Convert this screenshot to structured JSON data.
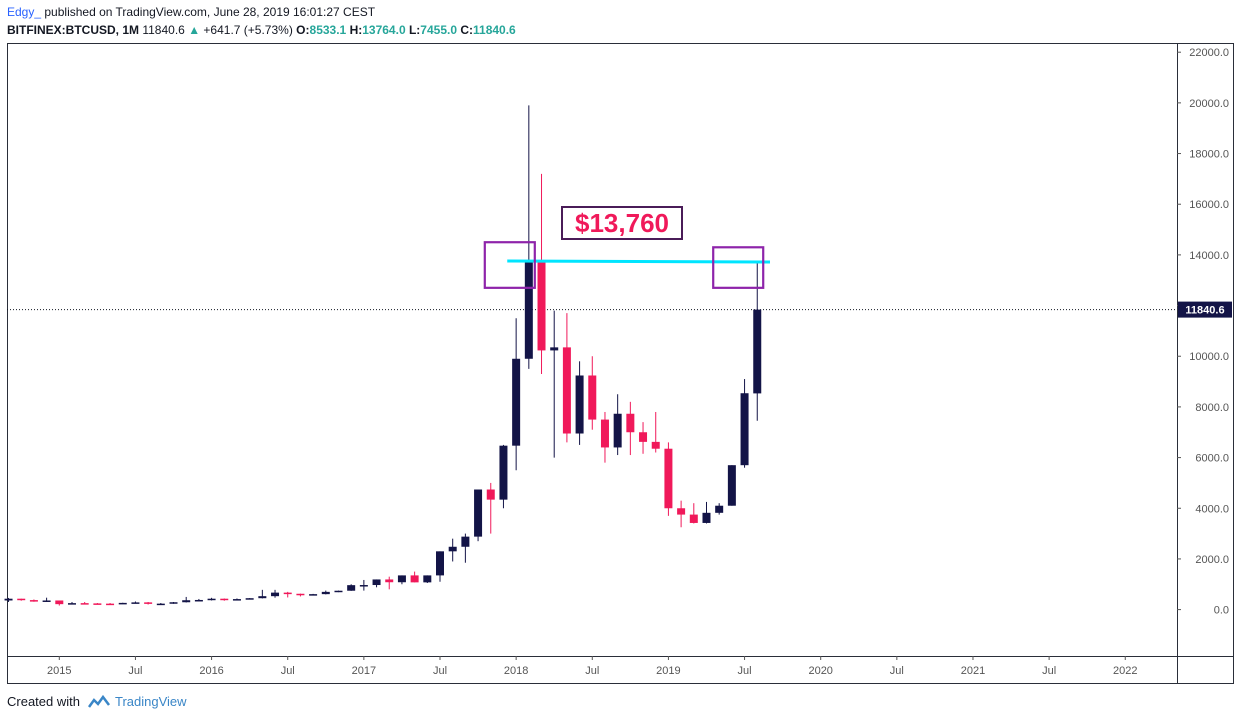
{
  "header": {
    "author": "Edgy_",
    "published": "published on TradingView.com, June 28, 2019 16:01:27 CEST",
    "symbol": "BITFINEX:BTCUSD, 1M",
    "last": "11840.6",
    "change_arrow": "▲",
    "change": "+641.7 (+5.73%)",
    "open_label": "O:",
    "open": "8533.1",
    "high_label": "H:",
    "high": "13764.0",
    "low_label": "L:",
    "low": "7455.0",
    "close_label": "C:",
    "close": "11840.6"
  },
  "callout": {
    "text": "$13,760"
  },
  "footer": {
    "created_with": "Created with",
    "brand": "TradingView"
  },
  "colors": {
    "up": "#131447",
    "down": "#f0195a",
    "resistance": "#00e5ff",
    "highlight_box": "#8e24aa",
    "price_tag": "#131447"
  },
  "chart_data": {
    "type": "candlestick",
    "title": "",
    "timeframe": "1M",
    "ylim": [
      -1700,
      22400
    ],
    "yticks": [
      22000,
      20000,
      18000,
      16000,
      14000,
      12000,
      10000,
      8000,
      6000,
      4000,
      2000,
      0
    ],
    "ytick_labels": [
      "22000.0",
      "20000.0",
      "18000.0",
      "16000.0",
      "14000.0",
      "12000.0",
      "10000.0",
      "8000.0",
      "6000.0",
      "4000.0",
      "2000.0",
      "0.0"
    ],
    "xtick_labels": [
      "2015",
      "Jul",
      "2016",
      "Jul",
      "2017",
      "Jul",
      "2018",
      "Jul",
      "2019",
      "Jul",
      "2020",
      "Jul",
      "2021",
      "Jul",
      "2022"
    ],
    "xtick_month_index": [
      0,
      6,
      12,
      18,
      24,
      30,
      36,
      42,
      48,
      54,
      60,
      66,
      72,
      78,
      84
    ],
    "first_candle_month_index": -4,
    "last_price": 11840.6,
    "resistance_level": 13760,
    "highlight_boxes": [
      {
        "month_index": 35.5,
        "low": 12700,
        "high": 14500
      },
      {
        "month_index": 53.5,
        "low": 12700,
        "high": 14300
      }
    ],
    "candles": [
      {
        "o": 360,
        "h": 460,
        "l": 300,
        "c": 430
      },
      {
        "o": 430,
        "h": 430,
        "l": 350,
        "c": 375
      },
      {
        "o": 375,
        "h": 400,
        "l": 310,
        "c": 320
      },
      {
        "o": 320,
        "h": 470,
        "l": 300,
        "c": 360
      },
      {
        "o": 360,
        "h": 360,
        "l": 160,
        "c": 215
      },
      {
        "o": 215,
        "h": 300,
        "l": 210,
        "c": 255
      },
      {
        "o": 255,
        "h": 300,
        "l": 235,
        "c": 245
      },
      {
        "o": 245,
        "h": 260,
        "l": 210,
        "c": 235
      },
      {
        "o": 235,
        "h": 260,
        "l": 220,
        "c": 230
      },
      {
        "o": 230,
        "h": 270,
        "l": 220,
        "c": 265
      },
      {
        "o": 265,
        "h": 320,
        "l": 260,
        "c": 285
      },
      {
        "o": 285,
        "h": 300,
        "l": 200,
        "c": 230
      },
      {
        "o": 230,
        "h": 260,
        "l": 195,
        "c": 235
      },
      {
        "o": 235,
        "h": 300,
        "l": 230,
        "c": 290
      },
      {
        "o": 290,
        "h": 500,
        "l": 280,
        "c": 370
      },
      {
        "o": 370,
        "h": 420,
        "l": 330,
        "c": 380
      },
      {
        "o": 380,
        "h": 465,
        "l": 360,
        "c": 430
      },
      {
        "o": 430,
        "h": 440,
        "l": 350,
        "c": 375
      },
      {
        "o": 375,
        "h": 440,
        "l": 360,
        "c": 415
      },
      {
        "o": 415,
        "h": 455,
        "l": 410,
        "c": 450
      },
      {
        "o": 450,
        "h": 780,
        "l": 440,
        "c": 530
      },
      {
        "o": 530,
        "h": 780,
        "l": 470,
        "c": 670
      },
      {
        "o": 670,
        "h": 700,
        "l": 480,
        "c": 625
      },
      {
        "o": 625,
        "h": 630,
        "l": 520,
        "c": 575
      },
      {
        "o": 575,
        "h": 620,
        "l": 560,
        "c": 610
      },
      {
        "o": 610,
        "h": 750,
        "l": 600,
        "c": 700
      },
      {
        "o": 700,
        "h": 750,
        "l": 690,
        "c": 745
      },
      {
        "o": 745,
        "h": 1000,
        "l": 740,
        "c": 965
      },
      {
        "o": 965,
        "h": 1170,
        "l": 750,
        "c": 970
      },
      {
        "o": 970,
        "h": 1060,
        "l": 880,
        "c": 1190
      },
      {
        "o": 1190,
        "h": 1300,
        "l": 800,
        "c": 1080
      },
      {
        "o": 1080,
        "h": 1150,
        "l": 1000,
        "c": 1350
      },
      {
        "o": 1350,
        "h": 1500,
        "l": 1100,
        "c": 1075
      },
      {
        "o": 1075,
        "h": 1200,
        "l": 1050,
        "c": 1350
      },
      {
        "o": 1350,
        "h": 2300,
        "l": 1100,
        "c": 2300
      },
      {
        "o": 2300,
        "h": 2800,
        "l": 1900,
        "c": 2480
      },
      {
        "o": 2480,
        "h": 3000,
        "l": 1850,
        "c": 2880
      },
      {
        "o": 2880,
        "h": 4700,
        "l": 2700,
        "c": 4740
      },
      {
        "o": 4740,
        "h": 5000,
        "l": 3000,
        "c": 4340
      },
      {
        "o": 4340,
        "h": 6500,
        "l": 4000,
        "c": 6470
      },
      {
        "o": 6470,
        "h": 11500,
        "l": 5500,
        "c": 9900
      },
      {
        "o": 9900,
        "h": 19900,
        "l": 9500,
        "c": 13800
      },
      {
        "o": 13800,
        "h": 17200,
        "l": 9300,
        "c": 10230
      },
      {
        "o": 10230,
        "h": 11800,
        "l": 6000,
        "c": 10350
      },
      {
        "o": 10350,
        "h": 11700,
        "l": 6600,
        "c": 6950
      },
      {
        "o": 6950,
        "h": 9800,
        "l": 6500,
        "c": 9240
      },
      {
        "o": 9240,
        "h": 10000,
        "l": 7100,
        "c": 7500
      },
      {
        "o": 7500,
        "h": 7800,
        "l": 5800,
        "c": 6400
      },
      {
        "o": 6400,
        "h": 8500,
        "l": 6100,
        "c": 7730
      },
      {
        "o": 7730,
        "h": 8200,
        "l": 6100,
        "c": 7000
      },
      {
        "o": 7000,
        "h": 7400,
        "l": 6150,
        "c": 6620
      },
      {
        "o": 6620,
        "h": 7800,
        "l": 6200,
        "c": 6350
      },
      {
        "o": 6350,
        "h": 6600,
        "l": 3700,
        "c": 4000
      },
      {
        "o": 4000,
        "h": 4300,
        "l": 3250,
        "c": 3750
      },
      {
        "o": 3750,
        "h": 4200,
        "l": 3400,
        "c": 3420
      },
      {
        "o": 3420,
        "h": 4250,
        "l": 3400,
        "c": 3820
      },
      {
        "o": 3820,
        "h": 4200,
        "l": 3750,
        "c": 4100
      },
      {
        "o": 4100,
        "h": 5600,
        "l": 4100,
        "c": 5700
      },
      {
        "o": 5700,
        "h": 9100,
        "l": 5600,
        "c": 8540
      },
      {
        "o": 8533.1,
        "h": 13764.0,
        "l": 7455.0,
        "c": 11840.6
      }
    ]
  }
}
